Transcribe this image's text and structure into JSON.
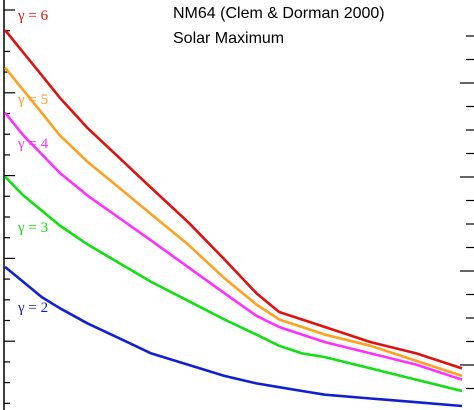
{
  "chart_data": {
    "type": "line",
    "title": "NM64 (Clem & Dorman 2000)",
    "subtitle": "Solar Maximum",
    "xlabel": "",
    "ylabel": "",
    "grid": false,
    "legend": "inline labels",
    "xlim": [
      0,
      100
    ],
    "ylim": [
      0,
      100
    ],
    "series": [
      {
        "name": "γ = 6",
        "color": "#e01010",
        "x": [
          0,
          4,
          8,
          12,
          18,
          25,
          32,
          40,
          48,
          55,
          60,
          65,
          70,
          80,
          90,
          100
        ],
        "y": [
          100,
          94,
          88,
          82,
          74,
          66,
          58,
          49,
          39,
          30,
          25,
          23,
          21,
          17,
          14,
          10
        ]
      },
      {
        "name": "γ = 5",
        "color": "#ffa020",
        "x": [
          0,
          4,
          8,
          12,
          18,
          25,
          32,
          40,
          48,
          55,
          60,
          65,
          70,
          80,
          90,
          100
        ],
        "y": [
          90,
          84,
          78,
          72,
          65,
          58,
          51,
          43,
          34,
          27,
          23,
          21,
          19,
          16,
          12,
          8
        ]
      },
      {
        "name": "γ = 4",
        "color": "#ff30ff",
        "x": [
          0,
          4,
          8,
          12,
          18,
          25,
          32,
          40,
          48,
          55,
          60,
          65,
          70,
          80,
          90,
          100
        ],
        "y": [
          78,
          72,
          67,
          62,
          56,
          50,
          44,
          37,
          30,
          24,
          21,
          19,
          17,
          14,
          11,
          7
        ]
      },
      {
        "name": "γ = 3",
        "color": "#10e010",
        "x": [
          0,
          4,
          8,
          12,
          18,
          25,
          32,
          40,
          48,
          55,
          60,
          65,
          70,
          80,
          90,
          100
        ],
        "y": [
          61,
          56,
          52,
          48,
          43,
          38,
          33,
          28,
          23,
          19,
          16,
          14,
          13,
          10,
          7,
          4
        ]
      },
      {
        "name": "γ = 2",
        "color": "#1020d0",
        "x": [
          0,
          4,
          8,
          12,
          18,
          25,
          32,
          40,
          48,
          55,
          60,
          65,
          70,
          80,
          90,
          100
        ],
        "y": [
          37,
          33,
          29,
          26,
          22,
          18,
          14,
          11,
          8,
          6,
          5,
          4,
          3,
          2,
          1,
          0
        ]
      }
    ]
  }
}
